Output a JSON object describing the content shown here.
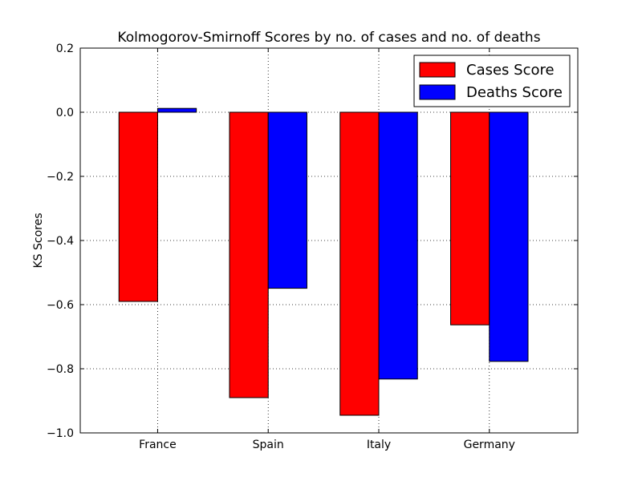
{
  "chart_data": {
    "type": "bar",
    "title": "Kolmogorov-Smirnoff Scores by no. of cases and no. of deaths",
    "xlabel": "",
    "ylabel": "KS Scores",
    "categories": [
      "France",
      "Spain",
      "Italy",
      "Germany"
    ],
    "series": [
      {
        "name": "Cases Score",
        "color": "#ff0000",
        "values": [
          -0.59,
          -0.89,
          -0.945,
          -0.663
        ]
      },
      {
        "name": "Deaths Score",
        "color": "#0000ff",
        "values": [
          0.012,
          -0.549,
          -0.832,
          -0.777
        ]
      }
    ],
    "ylim": [
      -1.0,
      0.2
    ],
    "yticks": [
      0.2,
      0.0,
      -0.2,
      -0.4,
      -0.6,
      -0.8,
      -1.0
    ],
    "ytick_labels": [
      "0.2",
      "0.0",
      "−0.2",
      "−0.4",
      "−0.6",
      "−0.8",
      "−1.0"
    ],
    "grid": true,
    "legend_position": "top-right"
  }
}
